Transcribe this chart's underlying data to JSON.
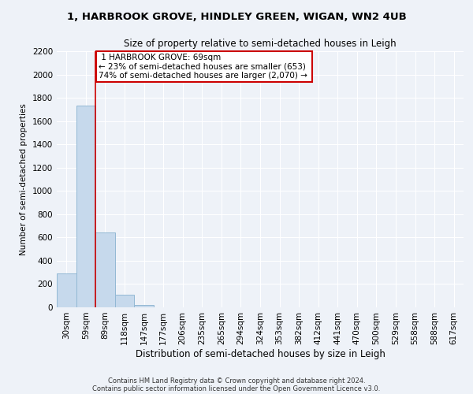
{
  "title_line1": "1, HARBROOK GROVE, HINDLEY GREEN, WIGAN, WN2 4UB",
  "title_line2": "Size of property relative to semi-detached houses in Leigh",
  "xlabel": "Distribution of semi-detached houses by size in Leigh",
  "ylabel": "Number of semi-detached properties",
  "bar_labels": [
    "30sqm",
    "59sqm",
    "89sqm",
    "118sqm",
    "147sqm",
    "177sqm",
    "206sqm",
    "235sqm",
    "265sqm",
    "294sqm",
    "324sqm",
    "353sqm",
    "382sqm",
    "412sqm",
    "441sqm",
    "470sqm",
    "500sqm",
    "529sqm",
    "558sqm",
    "588sqm",
    "617sqm"
  ],
  "bar_values": [
    290,
    1730,
    640,
    110,
    20,
    0,
    0,
    0,
    0,
    0,
    0,
    0,
    0,
    0,
    0,
    0,
    0,
    0,
    0,
    0,
    0
  ],
  "bar_color": "#c6d9ec",
  "bar_edgecolor": "#92b8d4",
  "property_line_x": 1.5,
  "property_label": "1 HARBROOK GROVE: 69sqm",
  "annotation_smaller": "← 23% of semi-detached houses are smaller (653)",
  "annotation_larger": "74% of semi-detached houses are larger (2,070) →",
  "annotation_box_color": "#ffffff",
  "annotation_box_edgecolor": "#cc0000",
  "line_color": "#cc0000",
  "ylim": [
    0,
    2200
  ],
  "yticks": [
    0,
    200,
    400,
    600,
    800,
    1000,
    1200,
    1400,
    1600,
    1800,
    2000,
    2200
  ],
  "footnote1": "Contains HM Land Registry data © Crown copyright and database right 2024.",
  "footnote2": "Contains public sector information licensed under the Open Government Licence v3.0.",
  "background_color": "#eef2f8",
  "plot_background": "#eef2f8",
  "grid_color": "#ffffff",
  "title1_fontsize": 9.5,
  "title2_fontsize": 8.5,
  "xlabel_fontsize": 8.5,
  "ylabel_fontsize": 7.5,
  "tick_fontsize": 7.5,
  "annot_fontsize": 7.5,
  "footnote_fontsize": 6.0
}
